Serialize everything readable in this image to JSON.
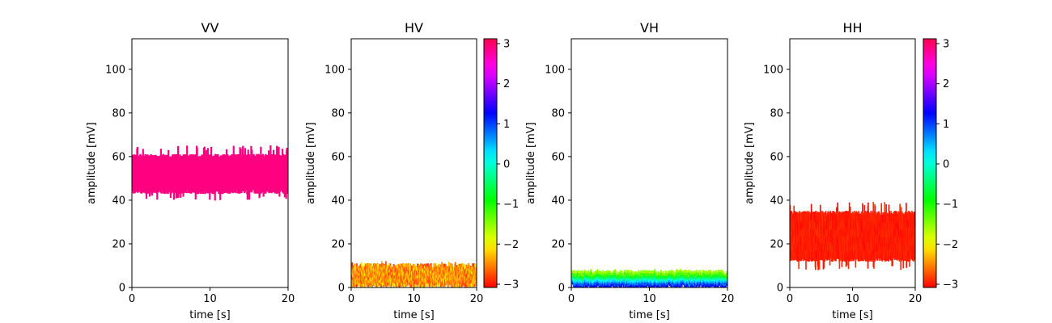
{
  "chart_data": [
    {
      "type": "scatter",
      "title": "VV",
      "xlabel": "time [s]",
      "ylabel": "amplitude [mV]",
      "xlim": [
        0,
        20
      ],
      "ylim": [
        0,
        114
      ],
      "xticks": [
        "0",
        "10",
        "20"
      ],
      "yticks": [
        "0",
        "20",
        "40",
        "60",
        "80",
        "100"
      ],
      "band": {
        "low": 44,
        "high": 60,
        "spike_low": 41,
        "spike_high": 64
      },
      "color_mode": "solid",
      "color": "#ff0080",
      "colorbar": false
    },
    {
      "type": "scatter",
      "title": "HV",
      "xlabel": "time [s]",
      "ylabel": "amplitude [mV]",
      "xlim": [
        0,
        20
      ],
      "ylim": [
        0,
        114
      ],
      "xticks": [
        "0",
        "10",
        "20"
      ],
      "yticks": [
        "0",
        "20",
        "40",
        "60",
        "80",
        "100"
      ],
      "band": {
        "low": 1,
        "high": 10,
        "spike_low": 0.5,
        "spike_high": 11
      },
      "color_mode": "phase",
      "phase_range": [
        -3.0,
        -2.0
      ],
      "colorbar": true,
      "colorbar_ticks": [
        "3",
        "2",
        "1",
        "0",
        "−1",
        "−2",
        "−3"
      ]
    },
    {
      "type": "scatter",
      "title": "VH",
      "xlabel": "time [s]",
      "ylabel": "amplitude [mV]",
      "xlim": [
        0,
        20
      ],
      "ylim": [
        0,
        114
      ],
      "xticks": [
        "0",
        "10",
        "20"
      ],
      "yticks": [
        "0",
        "20",
        "40",
        "60",
        "80",
        "100"
      ],
      "band": {
        "low": 0.5,
        "high": 7,
        "spike_low": 0.3,
        "spike_high": 7.5
      },
      "color_mode": "phase_low_high",
      "phase_range": [
        -1.6,
        1.2
      ],
      "colorbar": false
    },
    {
      "type": "scatter",
      "title": "HH",
      "xlabel": "time [s]",
      "ylabel": "amplitude [mV]",
      "xlim": [
        0,
        20
      ],
      "ylim": [
        0,
        114
      ],
      "xticks": [
        "0",
        "10",
        "20"
      ],
      "yticks": [
        "0",
        "20",
        "40",
        "60",
        "80",
        "100"
      ],
      "band": {
        "low": 13,
        "high": 34,
        "spike_low": 9,
        "spike_high": 38
      },
      "color_mode": "phase",
      "phase_range": [
        -3.14,
        -2.9
      ],
      "colorbar": true,
      "colorbar_ticks": [
        "3",
        "2",
        "1",
        "0",
        "−1",
        "−2",
        "−3"
      ]
    }
  ]
}
